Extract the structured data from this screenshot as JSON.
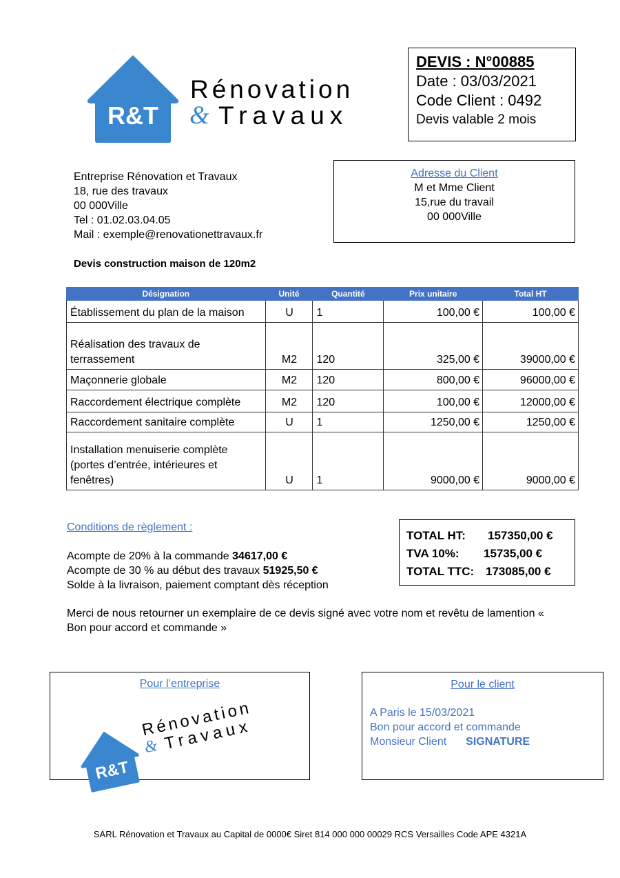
{
  "logo": {
    "brand_line1": "Rénovation",
    "brand_amp": "&",
    "brand_line2": "Travaux",
    "initials": "R&T",
    "color": "#3a87cf"
  },
  "quote": {
    "number": "DEVIS : N°00885",
    "date": "Date : 03/03/2021",
    "client_code": "Code Client : 0492",
    "validity": "Devis valable 2 mois"
  },
  "company": {
    "name": "Entreprise Rénovation et Travaux",
    "street": "18, rue des travaux",
    "city": "00 000Ville",
    "tel": "Tel : 01.02.03.04.05",
    "mail": "Mail : exemple@renovationettravaux.fr"
  },
  "client": {
    "heading": "Adresse du Client",
    "name": "M et Mme Client",
    "street": "15,rue du travail",
    "city": "00 000Ville"
  },
  "subject": "Devis construction maison de 120m2",
  "table": {
    "headers": [
      "Désignation",
      "Unité",
      "Quantité",
      "Prix unitaire",
      "Total HT"
    ],
    "rows": [
      [
        "Établissement du plan de la maison",
        "U",
        "1",
        "100,00 €",
        "100,00 €"
      ],
      [
        "Réalisation des travaux de terrassement",
        "M2",
        "120",
        "325,00 €",
        "39000,00 €"
      ],
      [
        "Maçonnerie globale",
        "M2",
        "120",
        "800,00 €",
        "96000,00 €"
      ],
      [
        "Raccordement électrique complète",
        "M2",
        "120",
        "100,00 €",
        "12000,00 €"
      ],
      [
        "Raccordement sanitaire complète",
        "U",
        "1",
        "1250,00 €",
        "1250,00 €"
      ],
      [
        "Installation menuiserie complète (portes d’entrée, intérieures et fenêtres)",
        "U",
        "1",
        "9000,00 €",
        "9000,00 €"
      ]
    ],
    "header_color": "#4472c4"
  },
  "conditions": {
    "heading": "Conditions de règlement :",
    "line1_text": "Acompte de 20% à la commande ",
    "line1_amount": "34617,00 €",
    "line2_text": "Acompte de 30 % au début des travaux ",
    "line2_amount": "51925,50 €",
    "line3": "Solde à la livraison, paiement comptant dès réception"
  },
  "totals": {
    "ht_label": "TOTAL HT:",
    "ht": "157350,00 €",
    "tva_label": "TVA 10%:",
    "tva": "15735,00 €",
    "ttc_label": "TOTAL TTC:",
    "ttc": "173085,00 €"
  },
  "merci": "Merci de nous retourner un exemplaire de ce devis signé avec votre nom et revêtu de lamention « Bon pour accord et commande »",
  "signature": {
    "company_heading": "Pour l’entreprise",
    "client_heading": "Pour le client",
    "client_line1": "A Paris le 15/03/2021",
    "client_line2": "Bon pour accord et commande",
    "client_line3": "Monsieur Client",
    "client_signature": "SIGNATURE"
  },
  "footer": "SARL Rénovation et Travaux au Capital de 0000€ Siret 814 000 000 00029 RCS Versailles Code APE 4321A"
}
